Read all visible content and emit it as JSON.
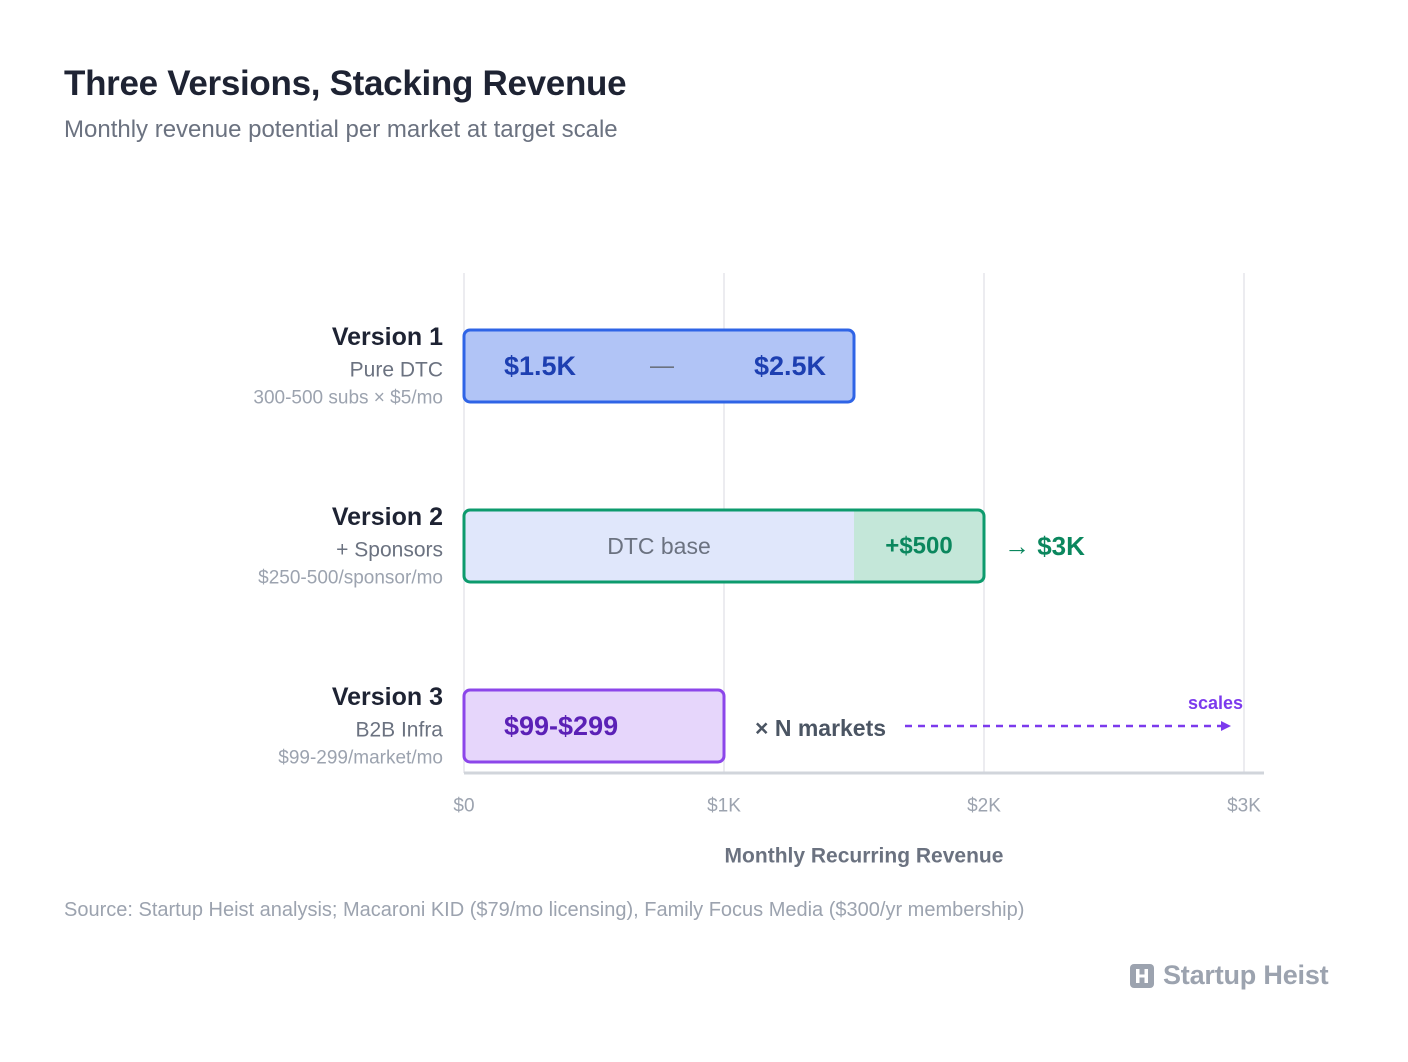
{
  "title": "Three Versions, Stacking Revenue",
  "subtitle": "Monthly revenue potential per market at target scale",
  "source": "Source: Startup Heist analysis; Macaroni KID ($79/mo licensing), Family Focus Media ($300/yr membership)",
  "brand": "Startup Heist",
  "chart_data": {
    "type": "bar",
    "orientation": "horizontal",
    "xlabel": "Monthly Recurring Revenue",
    "xlim": [
      0,
      3000
    ],
    "xticks": [
      0,
      1000,
      2000,
      3000
    ],
    "xtick_labels": [
      "$0",
      "$1K",
      "$2K",
      "$3K"
    ],
    "grid": true,
    "colors": {
      "v1_fill": "#b1c4f6",
      "v1_stroke": "#2f64e6",
      "v1_text": "#1d3fb1",
      "v2_base_fill": "#e0e7fb",
      "v2_extra_fill": "#c4e7d9",
      "v2_stroke": "#0d9b6d",
      "v2_text": "#0b875e",
      "v3_fill": "#e6d6fb",
      "v3_stroke": "#8c46ea",
      "v3_text": "#5b21b6",
      "arrow": "#7c3aed",
      "grid": "#ececf0",
      "axis": "#d1d5db"
    },
    "categories": [
      {
        "name": "Version 1",
        "sublabel": "Pure DTC",
        "detail": "300-500 subs × $5/mo",
        "range": [
          0,
          1500
        ],
        "value_low_label": "$1.5K",
        "separator": "—",
        "value_high_label": "$2.5K"
      },
      {
        "name": "Version 2",
        "sublabel": "+ Sponsors",
        "detail": "$250-500/sponsor/mo",
        "segments": [
          {
            "name": "DTC base",
            "start": 0,
            "end": 1500
          },
          {
            "name": "+$500",
            "start": 1500,
            "end": 2000
          }
        ],
        "total_label": "→ $3K"
      },
      {
        "name": "Version 3",
        "sublabel": "B2B Infra",
        "detail": "$99-299/market/mo",
        "range": [
          0,
          1000
        ],
        "value_label": "$99-$299",
        "multiplier_label": "× N markets",
        "arrow_label": "scales"
      }
    ]
  }
}
